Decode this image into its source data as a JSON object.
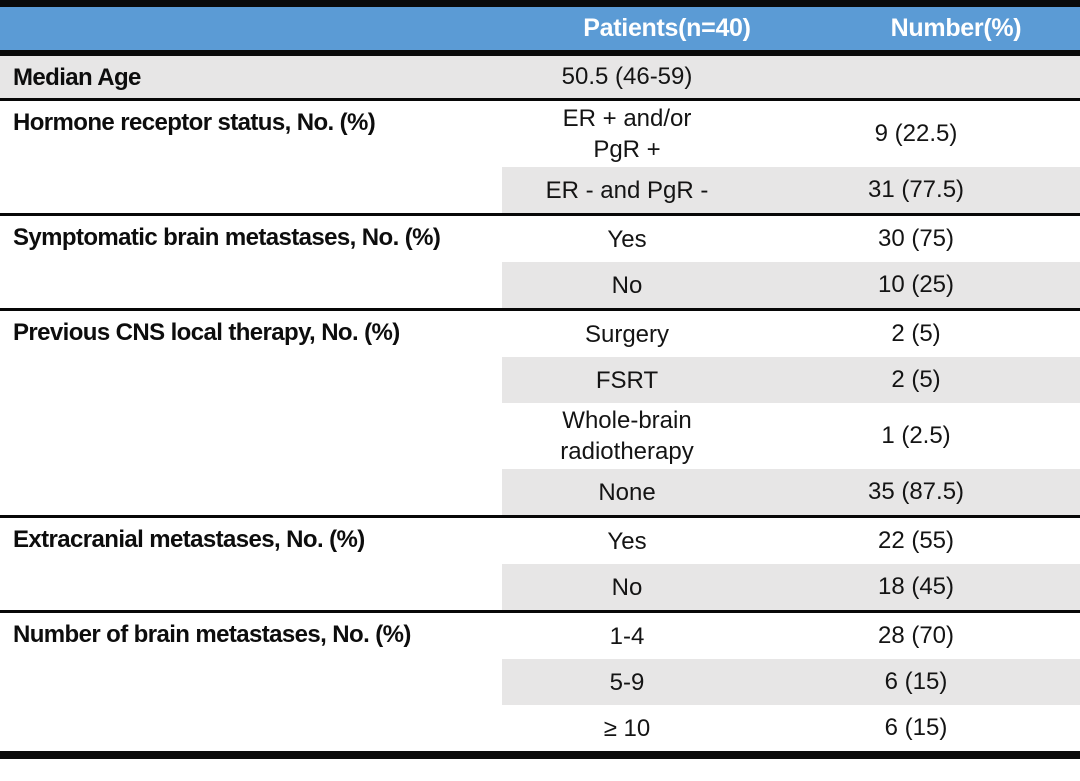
{
  "header": {
    "patients": "Patients(n=40)",
    "number": "Number(%)"
  },
  "sections": [
    {
      "label": "Median Age",
      "full_shade": true,
      "rows": [
        {
          "patients": "50.5 (46-59)",
          "number": "",
          "shaded": true
        }
      ]
    },
    {
      "label": "Hormone receptor status, No. (%)",
      "full_shade": false,
      "rows": [
        {
          "patients": "ER + and/or\nPgR +",
          "number": "9 (22.5)",
          "shaded": false
        },
        {
          "patients": "ER - and PgR -",
          "number": "31 (77.5)",
          "shaded": true
        }
      ]
    },
    {
      "label": "Symptomatic brain metastases, No. (%)",
      "full_shade": false,
      "rows": [
        {
          "patients": "Yes",
          "number": "30 (75)",
          "shaded": false
        },
        {
          "patients": "No",
          "number": "10 (25)",
          "shaded": true
        }
      ]
    },
    {
      "label": "Previous CNS local therapy, No. (%)",
      "full_shade": false,
      "rows": [
        {
          "patients": "Surgery",
          "number": "2 (5)",
          "shaded": false
        },
        {
          "patients": "FSRT",
          "number": "2 (5)",
          "shaded": true
        },
        {
          "patients": "Whole-brain\nradiotherapy",
          "number": "1 (2.5)",
          "shaded": false
        },
        {
          "patients": "None",
          "number": "35 (87.5)",
          "shaded": true
        }
      ]
    },
    {
      "label": "Extracranial metastases, No. (%)",
      "full_shade": false,
      "rows": [
        {
          "patients": "Yes",
          "number": "22 (55)",
          "shaded": false
        },
        {
          "patients": "No",
          "number": "18 (45)",
          "shaded": true
        }
      ]
    },
    {
      "label": "Number of brain metastases, No. (%)",
      "full_shade": false,
      "rows": [
        {
          "patients": "1-4",
          "number": "28 (70)",
          "shaded": false
        },
        {
          "patients": "5-9",
          "number": "6 (15)",
          "shaded": true
        },
        {
          "patients": "≥ 10",
          "number": "6 (15)",
          "shaded": false
        }
      ]
    }
  ],
  "colors": {
    "header_bg": "#5b9bd5",
    "header_text": "#ffffff",
    "row_shade": "#e7e6e6",
    "line": "#0a0a0a"
  }
}
